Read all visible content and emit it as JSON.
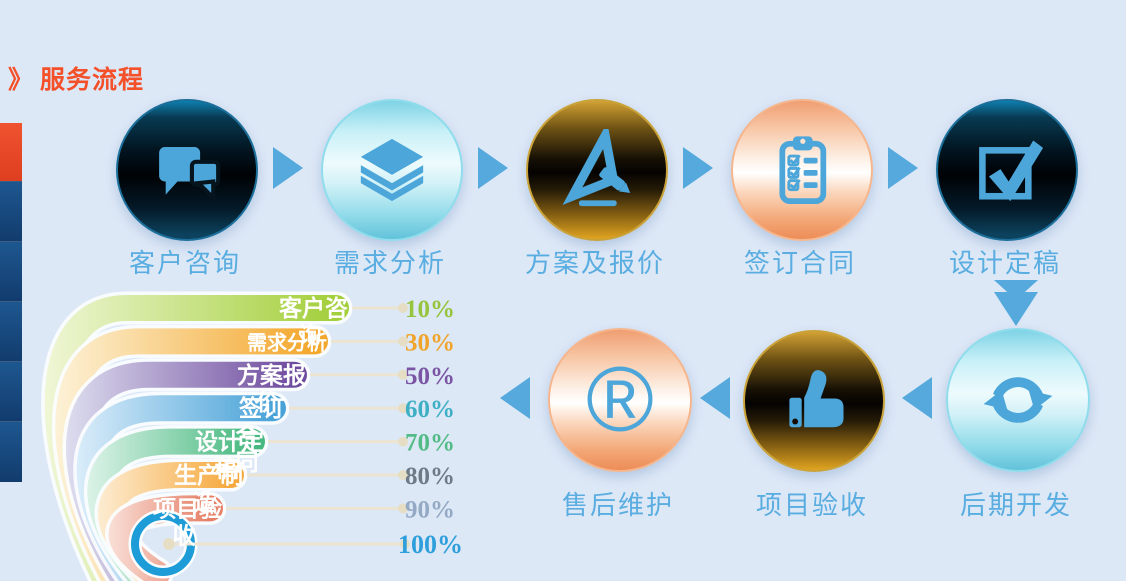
{
  "header": {
    "marker": "》",
    "title": "服务流程",
    "color": "#f4502a"
  },
  "decor": {
    "left_strip": {
      "red_block_color": "#e74c2a",
      "blue_block_color": "#164a80",
      "blue_block_count": 5
    }
  },
  "flow": {
    "icon_color": "#4da6d9",
    "arrow_color": "#55a9dc",
    "label_color": "#5aade0",
    "registered_glyph": "®",
    "top_row": [
      {
        "label": "客户咨询",
        "icon": "chat-bubbles-icon",
        "theme": "dark"
      },
      {
        "label": "需求分析",
        "icon": "layers-icon",
        "theme": "cyan"
      },
      {
        "label": "方案及报价",
        "icon": "set-square-pencil-icon",
        "theme": "gold"
      },
      {
        "label": "签订合同",
        "icon": "clipboard-checklist-icon",
        "theme": "orange"
      },
      {
        "label": "设计定稿",
        "icon": "checked-box-icon",
        "theme": "dark"
      }
    ],
    "bottom_row": [
      {
        "label": "售后维护",
        "icon": "registered-trademark-icon",
        "theme": "orange"
      },
      {
        "label": "项目验收",
        "icon": "thumbs-up-icon",
        "theme": "gold"
      },
      {
        "label": "后期开发",
        "icon": "sync-arrows-icon",
        "theme": "cyan"
      }
    ]
  },
  "chart_data": {
    "type": "bar",
    "variant": "curved-funnel-bands",
    "title": "",
    "xlabel": "",
    "ylabel": "",
    "grid": false,
    "legend": false,
    "categories": [
      "客户咨询",
      "需求分析",
      "方案报价",
      "签订合同",
      "设计定稿",
      "生产制造",
      "项目验收",
      ""
    ],
    "values": [
      10,
      30,
      50,
      60,
      70,
      80,
      90,
      100
    ],
    "value_labels": [
      "10%",
      "30%",
      "50%",
      "60%",
      "70%",
      "80%",
      "90%",
      "100%"
    ],
    "label_lines": [
      [
        "客户咨",
        "询"
      ],
      [
        "需求分析"
      ],
      [
        "方案报",
        "价"
      ],
      [
        "签订",
        "合",
        "同"
      ],
      [
        "设计定",
        "稿"
      ],
      [
        "生产制",
        "造"
      ],
      [
        "项目验",
        "收"
      ],
      []
    ],
    "band_colors": [
      "#a3cf3b",
      "#f3a72c",
      "#6f4b9e",
      "#4aa3d8",
      "#47b87f",
      "#f6a93e",
      "#e57f66",
      "#1e9cd7"
    ],
    "band_light_colors": [
      "#f0f7d8",
      "#fdf3da",
      "#dfe0f0",
      "#ddeefa",
      "#dff4ea",
      "#fdeed6",
      "#fae3dc",
      "#ffffff"
    ],
    "value_colors": [
      "#96c43c",
      "#f0a42c",
      "#7a55a4",
      "#3fb0c4",
      "#52bb86",
      "#6e7a86",
      "#93a9c4",
      "#2f9fdc"
    ],
    "connector_color": "#ece4d0",
    "connector_dot_color": "#e6ddc5",
    "label_text_color": "#ffffff"
  }
}
